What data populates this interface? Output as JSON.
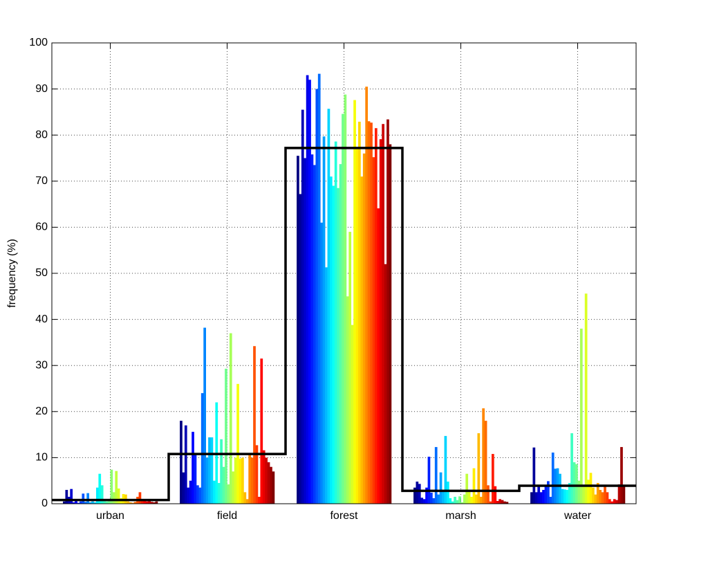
{
  "chart_data": {
    "type": "grouped_bar",
    "y_label": "frequency (%)",
    "categories": [
      "urban",
      "field",
      "forest",
      "marsh",
      "water"
    ],
    "colormap": "jet",
    "grid": true,
    "ylim": [
      0,
      100
    ],
    "yticks": [
      0,
      10,
      20,
      30,
      40,
      50,
      60,
      70,
      80,
      90,
      100
    ],
    "series": [
      {
        "values": [
          0.5,
          18,
          75.5,
          3.5,
          2.5
        ]
      },
      {
        "values": [
          3,
          6.8,
          67.2,
          4.8,
          12.2
        ]
      },
      {
        "values": [
          1.5,
          17,
          85.5,
          4.3,
          2.5
        ]
      },
      {
        "values": [
          3.2,
          3.5,
          75,
          1.3,
          4.1
        ]
      },
      {
        "values": [
          0.3,
          5,
          93,
          1,
          2.5
        ]
      },
      {
        "values": [
          0.8,
          15.6,
          92,
          3.5,
          3
        ]
      },
      {
        "values": [
          0.2,
          11,
          75.8,
          10.2,
          4.1
        ]
      },
      {
        "values": [
          0.5,
          4,
          73.5,
          2.4,
          4.9
        ]
      },
      {
        "values": [
          2.2,
          3.5,
          90,
          1.2,
          1.5
        ]
      },
      {
        "values": [
          0.4,
          24,
          93.3,
          12.3,
          11.1
        ]
      },
      {
        "values": [
          2.3,
          38.2,
          61,
          2,
          7.6
        ]
      },
      {
        "values": [
          0.3,
          10,
          79.7,
          6.8,
          7.7
        ]
      },
      {
        "values": [
          0.5,
          14.4,
          51.3,
          3,
          6.5
        ]
      },
      {
        "values": [
          0.3,
          14.4,
          85.7,
          14.7,
          3.2
        ]
      },
      {
        "values": [
          3.5,
          5,
          71,
          4.8,
          3.1
        ]
      },
      {
        "values": [
          6.5,
          22,
          69,
          1.2,
          3
        ]
      },
      {
        "values": [
          4,
          4.5,
          78.6,
          0.5,
          4.5
        ]
      },
      {
        "values": [
          1,
          14,
          68.5,
          1.5,
          15.3
        ]
      },
      {
        "values": [
          0.5,
          8,
          73.7,
          0.8,
          9
        ]
      },
      {
        "values": [
          0.8,
          29.3,
          84.6,
          1.6,
          8.6
        ]
      },
      {
        "values": [
          7.4,
          4.2,
          88.8,
          0.3,
          5
        ]
      },
      {
        "values": [
          2.5,
          37,
          45,
          2,
          38
        ]
      },
      {
        "values": [
          7.1,
          7,
          59,
          6.5,
          4
        ]
      },
      {
        "values": [
          3.3,
          10,
          38.8,
          3,
          45.6
        ]
      },
      {
        "values": [
          1.2,
          26,
          87.6,
          1.5,
          5.2
        ]
      },
      {
        "values": [
          2.1,
          9.8,
          77,
          7.7,
          6.7
        ]
      },
      {
        "values": [
          2,
          10,
          82.9,
          2,
          3.5
        ]
      },
      {
        "values": [
          0.5,
          2.5,
          71,
          15.3,
          2
        ]
      },
      {
        "values": [
          0.3,
          1,
          76,
          1.5,
          4.5
        ]
      },
      {
        "values": [
          0.2,
          11,
          90.5,
          20.7,
          3
        ]
      },
      {
        "values": [
          0.4,
          10,
          83,
          18,
          2.5
        ]
      },
      {
        "values": [
          1.5,
          34.2,
          82.7,
          4,
          4
        ]
      },
      {
        "values": [
          2.5,
          12.7,
          75.2,
          0.5,
          2.5
        ]
      },
      {
        "values": [
          1,
          1.5,
          81.5,
          10.8,
          1
        ]
      },
      {
        "values": [
          0.8,
          31.5,
          64.1,
          3.8,
          0.5
        ]
      },
      {
        "values": [
          0.5,
          11.6,
          79.1,
          0.6,
          1
        ]
      },
      {
        "values": [
          0.6,
          10,
          82.4,
          1,
          0.8
        ]
      },
      {
        "values": [
          0.4,
          9,
          52,
          0.8,
          4.2
        ]
      },
      {
        "values": [
          0.3,
          8,
          83.4,
          0.5,
          12.3
        ]
      },
      {
        "values": [
          0.5,
          7,
          78,
          0.4,
          4
        ]
      }
    ],
    "step_line": {
      "color": "#000000",
      "values": [
        0.8,
        10.8,
        77.2,
        2.8,
        3.9
      ]
    }
  }
}
